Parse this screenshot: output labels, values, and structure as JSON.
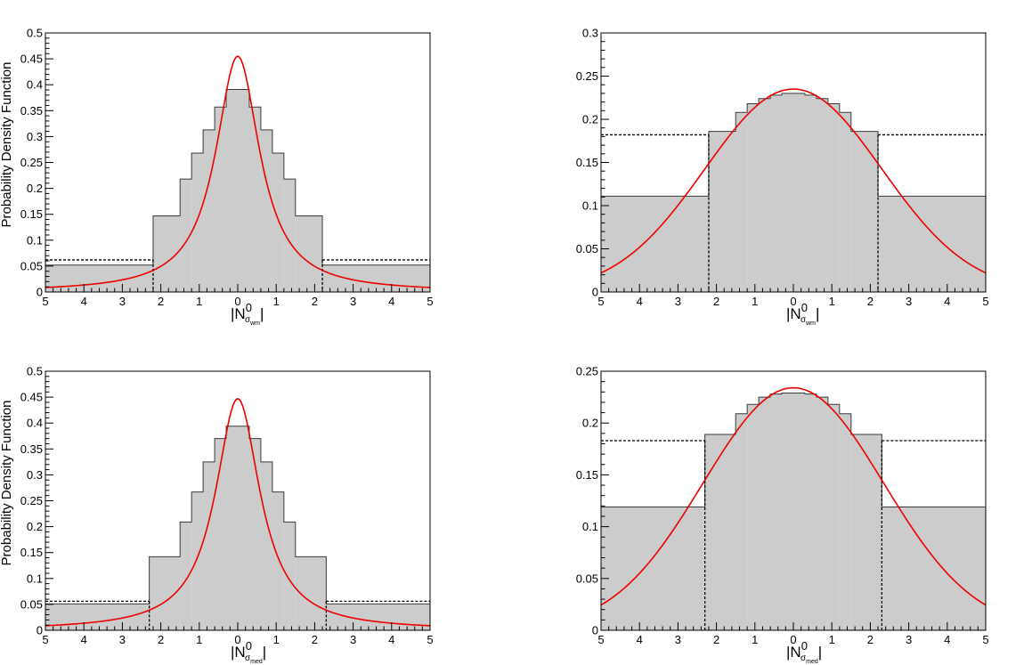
{
  "figure": {
    "background": "#ffffff"
  },
  "style": {
    "hist_fill": "#cccccc",
    "hist_stroke": "#3a3a3a",
    "curve_color": "#ee0000",
    "ref_line_color": "#000000"
  },
  "chart_data": [
    {
      "id": "top-left",
      "type": "histogram",
      "ylabel": "Probability Density Function",
      "xlabel": {
        "main": "|N",
        "sup": "0",
        "sub_symbol": "σ",
        "sub_text": "wm",
        "end": "|"
      },
      "xlim": [
        -5,
        5
      ],
      "ylim": [
        0,
        0.5
      ],
      "x_tick_values": [
        -5,
        -4,
        -3,
        -2,
        -1,
        0,
        1,
        2,
        3,
        4,
        5
      ],
      "x_tick_labels": [
        "5",
        "4",
        "3",
        "2",
        "1",
        "0",
        "1",
        "2",
        "3",
        "4",
        "5"
      ],
      "y_tick_values": [
        0,
        0.05,
        0.1,
        0.15,
        0.2,
        0.25,
        0.3,
        0.35,
        0.4,
        0.45,
        0.5
      ],
      "y_tick_labels": [
        "0",
        "0.05",
        "0.1",
        "0.15",
        "0.2",
        "0.25",
        "0.3",
        "0.35",
        "0.4",
        "0.45",
        "0.5"
      ],
      "histogram": {
        "edges": [
          -5,
          -2.2,
          -1.5,
          -1.2,
          -0.9,
          -0.6,
          -0.3,
          0.3,
          0.6,
          0.9,
          1.2,
          1.5,
          2.2,
          5
        ],
        "values": [
          0.052,
          0.147,
          0.218,
          0.268,
          0.313,
          0.357,
          0.391,
          0.357,
          0.313,
          0.268,
          0.218,
          0.147,
          0.052
        ]
      },
      "reference": {
        "level": 0.062,
        "split": [
          -2.2,
          2.2
        ]
      },
      "curve": {
        "kind": "cauchy",
        "center": 0,
        "peak": 0.455,
        "gamma": 0.7
      }
    },
    {
      "id": "top-right",
      "type": "histogram",
      "ylabel": "",
      "xlabel": {
        "main": "|N",
        "sup": "0",
        "sub_symbol": "σ",
        "sub_text": "wm",
        "end": "|"
      },
      "xlim": [
        -5,
        5
      ],
      "ylim": [
        0,
        0.3
      ],
      "x_tick_values": [
        -5,
        -4,
        -3,
        -2,
        -1,
        0,
        1,
        2,
        3,
        4,
        5
      ],
      "x_tick_labels": [
        "5",
        "4",
        "3",
        "2",
        "1",
        "0",
        "1",
        "2",
        "3",
        "4",
        "5"
      ],
      "y_tick_values": [
        0,
        0.05,
        0.1,
        0.15,
        0.2,
        0.25,
        0.3
      ],
      "y_tick_labels": [
        "0",
        "0.05",
        "0.1",
        "0.15",
        "0.2",
        "0.25",
        "0.3"
      ],
      "histogram": {
        "edges": [
          -5,
          -2.2,
          -1.5,
          -1.2,
          -0.9,
          -0.6,
          -0.3,
          0.3,
          0.6,
          0.9,
          1.2,
          1.5,
          2.2,
          5
        ],
        "values": [
          0.111,
          0.186,
          0.208,
          0.218,
          0.224,
          0.228,
          0.23,
          0.228,
          0.224,
          0.218,
          0.208,
          0.186,
          0.111
        ]
      },
      "reference": {
        "level": 0.182,
        "split": [
          -2.2,
          2.2
        ]
      },
      "curve": {
        "kind": "gaussian",
        "center": 0,
        "peak": 0.235,
        "sigma": 2.3
      }
    },
    {
      "id": "bottom-left",
      "type": "histogram",
      "ylabel": "Probability Density Function",
      "xlabel": {
        "main": "|N",
        "sup": "0",
        "sub_symbol": "σ",
        "sub_text": "med",
        "end": "|"
      },
      "xlim": [
        -5,
        5
      ],
      "ylim": [
        0,
        0.5
      ],
      "x_tick_values": [
        -5,
        -4,
        -3,
        -2,
        -1,
        0,
        1,
        2,
        3,
        4,
        5
      ],
      "x_tick_labels": [
        "5",
        "4",
        "3",
        "2",
        "1",
        "0",
        "1",
        "2",
        "3",
        "4",
        "5"
      ],
      "y_tick_values": [
        0,
        0.05,
        0.1,
        0.15,
        0.2,
        0.25,
        0.3,
        0.35,
        0.4,
        0.45,
        0.5
      ],
      "y_tick_labels": [
        "0",
        "0.05",
        "0.1",
        "0.15",
        "0.2",
        "0.25",
        "0.3",
        "0.35",
        "0.4",
        "0.45",
        "0.5"
      ],
      "histogram": {
        "edges": [
          -5,
          -2.3,
          -1.5,
          -1.2,
          -0.9,
          -0.6,
          -0.3,
          0.3,
          0.6,
          0.9,
          1.2,
          1.5,
          2.3,
          5
        ],
        "values": [
          0.051,
          0.142,
          0.209,
          0.267,
          0.325,
          0.37,
          0.394,
          0.37,
          0.325,
          0.267,
          0.209,
          0.142,
          0.051
        ]
      },
      "reference": {
        "level": 0.056,
        "split": [
          -2.3,
          2.3
        ]
      },
      "curve": {
        "kind": "cauchy",
        "center": 0,
        "peak": 0.447,
        "gamma": 0.71
      }
    },
    {
      "id": "bottom-right",
      "type": "histogram",
      "ylabel": "",
      "xlabel": {
        "main": "|N",
        "sup": "0",
        "sub_symbol": "σ",
        "sub_text": "med",
        "end": "|"
      },
      "xlim": [
        -5,
        5
      ],
      "ylim": [
        0,
        0.25
      ],
      "x_tick_values": [
        -5,
        -4,
        -3,
        -2,
        -1,
        0,
        1,
        2,
        3,
        4,
        5
      ],
      "x_tick_labels": [
        "5",
        "4",
        "3",
        "2",
        "1",
        "0",
        "1",
        "2",
        "3",
        "4",
        "5"
      ],
      "y_tick_values": [
        0,
        0.05,
        0.1,
        0.15,
        0.2,
        0.25
      ],
      "y_tick_labels": [
        "0",
        "0.05",
        "0.1",
        "0.15",
        "0.2",
        "0.25"
      ],
      "histogram": {
        "edges": [
          -5,
          -2.3,
          -1.5,
          -1.2,
          -0.9,
          -0.6,
          -0.3,
          0.3,
          0.6,
          0.9,
          1.2,
          1.5,
          2.3,
          5
        ],
        "values": [
          0.119,
          0.189,
          0.209,
          0.218,
          0.225,
          0.228,
          0.229,
          0.228,
          0.225,
          0.218,
          0.209,
          0.189,
          0.119
        ]
      },
      "reference": {
        "level": 0.183,
        "split": [
          -2.3,
          2.3
        ]
      },
      "curve": {
        "kind": "gaussian",
        "center": 0,
        "peak": 0.234,
        "sigma": 2.35
      }
    }
  ]
}
